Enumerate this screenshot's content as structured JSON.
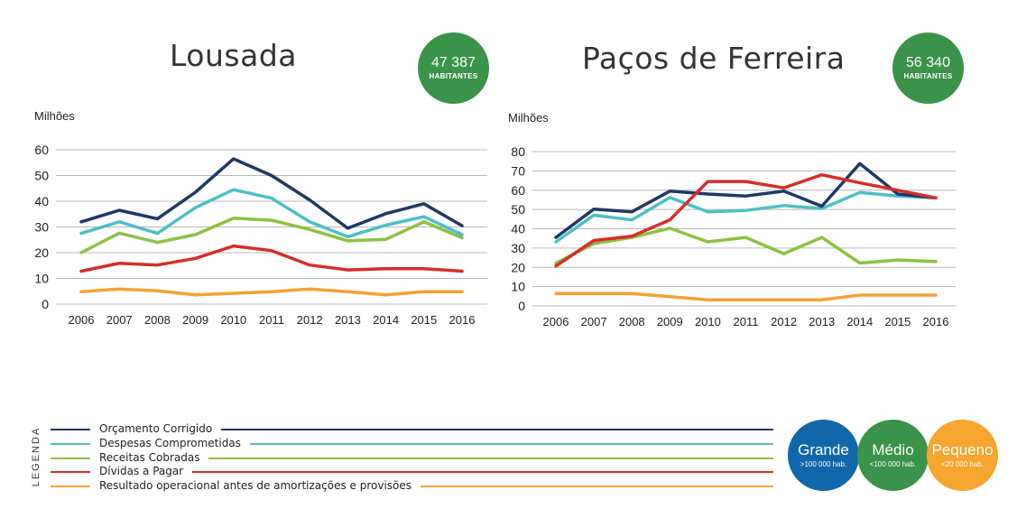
{
  "colors": {
    "orcamento": "#1f3864",
    "despesas": "#4bbfc6",
    "receitas": "#8dc23f",
    "dividas": "#d62e2a",
    "resultado": "#f6a130",
    "grid": "#b9b9b9",
    "badge_green": "#3a9348",
    "grande": "#1167ab",
    "medio": "#3a9348",
    "pequeno": "#f6a52e"
  },
  "chart_data": [
    {
      "type": "line",
      "title": "Lousada",
      "badge": {
        "value": "47 387",
        "label": "HABITANTES"
      },
      "ylabel": "Milhões",
      "ylim": [
        0,
        60
      ],
      "yticks": [
        0,
        10,
        20,
        30,
        40,
        50,
        60
      ],
      "categories": [
        "2006",
        "2007",
        "2008",
        "2009",
        "2010",
        "2011",
        "2012",
        "2013",
        "2014",
        "2015",
        "2016"
      ],
      "series": [
        {
          "name": "Orçamento Corrigido",
          "key": "orcamento",
          "values": [
            32,
            36.5,
            33.2,
            43.5,
            56.5,
            50,
            40.5,
            29.5,
            35.2,
            39,
            30.5
          ]
        },
        {
          "name": "Despesas Comprometidas",
          "key": "despesas",
          "values": [
            27.5,
            32,
            27.5,
            37.5,
            44.5,
            41.2,
            32,
            26.2,
            30.7,
            34,
            27
          ]
        },
        {
          "name": "Receitas Cobradas",
          "key": "receitas",
          "values": [
            20,
            27.6,
            24,
            27,
            33.4,
            32.6,
            29,
            24.6,
            25.2,
            32,
            25.8
          ]
        },
        {
          "name": "Dívidas a Pagar",
          "key": "dividas",
          "values": [
            12.8,
            15.9,
            15.2,
            17.8,
            22.6,
            20.8,
            15.2,
            13.3,
            13.8,
            13.8,
            12.8
          ]
        },
        {
          "name": "Resultado operacional antes de amortizações e provisões",
          "key": "resultado",
          "values": [
            4.8,
            5.9,
            5.2,
            3.6,
            4.2,
            4.8,
            5.9,
            4.8,
            3.6,
            4.8,
            4.8
          ]
        }
      ]
    },
    {
      "type": "line",
      "title": "Paços de Ferreira",
      "badge": {
        "value": "56 340",
        "label": "HABITANTES"
      },
      "ylabel": "Milhões",
      "ylim": [
        0,
        80
      ],
      "yticks": [
        0,
        10,
        20,
        30,
        40,
        50,
        60,
        70,
        80
      ],
      "categories": [
        "2006",
        "2007",
        "2008",
        "2009",
        "2010",
        "2011",
        "2012",
        "2013",
        "2014",
        "2015",
        "2016"
      ],
      "series": [
        {
          "name": "Orçamento Corrigido",
          "key": "orcamento",
          "values": [
            35.5,
            50.2,
            48.8,
            59.5,
            58,
            57,
            59.5,
            51.7,
            73.8,
            58,
            56
          ]
        },
        {
          "name": "Despesas Comprometidas",
          "key": "despesas",
          "values": [
            33.2,
            47,
            44.6,
            56.2,
            48.8,
            49.5,
            52,
            50.5,
            58.8,
            57,
            56
          ]
        },
        {
          "name": "Receitas Cobradas",
          "key": "receitas",
          "values": [
            22.2,
            32.3,
            35.5,
            40.3,
            33.2,
            35.5,
            27.1,
            35.5,
            22.2,
            23.8,
            23
          ]
        },
        {
          "name": "Dívidas a Pagar",
          "key": "dividas",
          "values": [
            20.7,
            33.9,
            36.1,
            44.6,
            64.5,
            64.5,
            61.2,
            68,
            63.8,
            60,
            56
          ]
        },
        {
          "name": "Resultado operacional antes de amortizações e provisões",
          "key": "resultado",
          "values": [
            6.4,
            6.4,
            6.4,
            4.8,
            3.2,
            3.2,
            3.2,
            3.2,
            5.6,
            5.6,
            5.6
          ]
        }
      ]
    }
  ],
  "legend": {
    "title": "LEGENDA",
    "items": [
      {
        "label": "Orçamento Corrigido",
        "key": "orcamento"
      },
      {
        "label": "Despesas Comprometidas",
        "key": "despesas"
      },
      {
        "label": "Receitas Cobradas",
        "key": "receitas"
      },
      {
        "label": "Dívidas a Pagar",
        "key": "dividas"
      },
      {
        "label": "Resultado operacional antes de amortizações e provisões",
        "key": "resultado"
      }
    ]
  },
  "size_legend": [
    {
      "title": "Grande",
      "sub": ">100 000 hab.",
      "key": "grande"
    },
    {
      "title": "Médio",
      "sub": "<100 000 hab.",
      "key": "medio"
    },
    {
      "title": "Pequeno",
      "sub": "<20 000 hab.",
      "key": "pequeno"
    }
  ]
}
